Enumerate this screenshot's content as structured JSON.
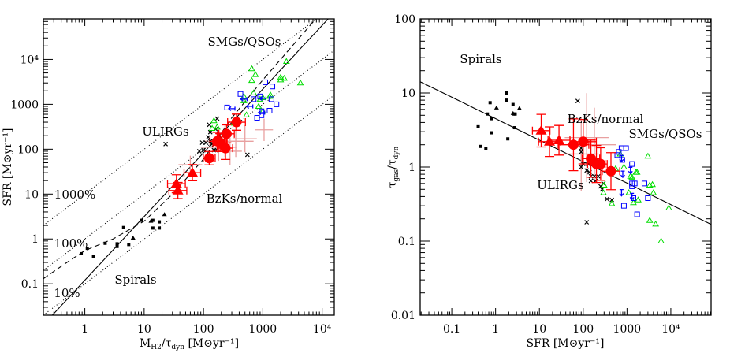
{
  "chart_data": [
    {
      "type": "scatter",
      "xscale": "log",
      "yscale": "log",
      "xlim": [
        0.2,
        16000
      ],
      "ylim": [
        0.02,
        80000
      ],
      "xlabel": {
        "main": "M",
        "sub": "H2",
        "mid": "/τ",
        "sub2": "dyn",
        "rest": " [M⊙yr⁻¹]"
      },
      "ylabel": "SFR [M⊙yr⁻¹]",
      "xticks": [
        {
          "v": 1,
          "label": "1"
        },
        {
          "v": 10,
          "label": "10"
        },
        {
          "v": 100,
          "label": "100"
        },
        {
          "v": 1000,
          "label": "1000"
        },
        {
          "v": 10000,
          "label": "10⁴"
        }
      ],
      "yticks": [
        {
          "v": 0.1,
          "label": "0.1"
        },
        {
          "v": 1,
          "label": "1"
        },
        {
          "v": 10,
          "label": "10"
        },
        {
          "v": 100,
          "label": "100"
        },
        {
          "v": 1000,
          "label": "1000"
        },
        {
          "v": 10000,
          "label": "10⁴"
        }
      ],
      "annotations": [
        "SMGs/QSOs",
        "ULIRGs",
        "BzKs/normal",
        "Spirals",
        "1000%",
        "100%",
        "10%"
      ],
      "lines": [
        {
          "style": "dotted",
          "kind": "ratio",
          "factor": 10
        },
        {
          "style": "dotted",
          "kind": "ratio",
          "factor": 1
        },
        {
          "style": "dotted",
          "kind": "ratio",
          "factor": 0.1
        },
        {
          "style": "solid",
          "kind": "power",
          "A": 0.12,
          "slope": 1.42
        },
        {
          "style": "dashed",
          "kind": "points",
          "points": [
            [
              0.2,
              0.13
            ],
            [
              0.5,
              0.3
            ],
            [
              1,
              0.55
            ],
            [
              3,
              1.0
            ],
            [
              10,
              2.5
            ],
            [
              30,
              10
            ],
            [
              100,
              60
            ],
            [
              300,
              500
            ],
            [
              1000,
              3500
            ],
            [
              7800,
              80000
            ]
          ]
        }
      ],
      "series": {
        "spirals_squares": {
          "color": "#000000",
          "points": [
            [
              0.87,
              0.47
            ],
            [
              1.1,
              0.62
            ],
            [
              1.4,
              0.4
            ],
            [
              2.2,
              0.8
            ],
            [
              3.5,
              0.78
            ],
            [
              3.5,
              0.68
            ],
            [
              4.5,
              1.8
            ],
            [
              5.5,
              0.75
            ],
            [
              9,
              2.6
            ],
            [
              14,
              2.6
            ],
            [
              14,
              1.75
            ],
            [
              18,
              2.4
            ],
            [
              18,
              1.75
            ]
          ]
        },
        "spirals_triangles": {
          "color": "#000000",
          "points": [
            [
              6.5,
              1.05
            ],
            [
              13,
              2.5
            ],
            [
              22,
              3.5
            ]
          ]
        },
        "ulirgs_crosses": {
          "color": "#000000",
          "points": [
            [
              23,
              130
            ],
            [
              85,
              90
            ],
            [
              95,
              140
            ],
            [
              100,
              95
            ],
            [
              110,
              140
            ],
            [
              120,
              185
            ],
            [
              125,
              350
            ],
            [
              130,
              150
            ],
            [
              130,
              240
            ],
            [
              140,
              130
            ],
            [
              150,
              95
            ],
            [
              160,
              95
            ],
            [
              170,
              480
            ],
            [
              180,
              200
            ],
            [
              200,
              180
            ],
            [
              220,
              210
            ],
            [
              250,
              230
            ],
            [
              160,
              280
            ],
            [
              550,
              75
            ]
          ]
        },
        "red_triangles": {
          "color": "#ff0000",
          "points": [
            [
              35,
              17,
              0.15,
              0.2
            ],
            [
              37,
              12,
              0.15,
              0.18
            ],
            [
              65,
              30,
              0.14,
              0.18
            ]
          ]
        },
        "red_circles": {
          "color": "#ff0000",
          "points": [
            [
              125,
              63,
              0.1,
              0.15
            ],
            [
              170,
              150,
              0.12,
              0.2
            ],
            [
              190,
              140,
              0.12,
              0.2
            ],
            [
              235,
              105,
              0.12,
              0.25
            ],
            [
              245,
              220,
              0.13,
              0.2
            ],
            [
              360,
              400,
              0.15,
              0.18
            ]
          ]
        },
        "faint_errorbars": {
          "color": "#e8a0a0",
          "points": [
            [
              230,
              150,
              0.35,
              0.35
            ],
            [
              350,
              150,
              0.3,
              0.35
            ],
            [
              500,
              170,
              0.2,
              0.3
            ],
            [
              1050,
              270,
              0.15,
              0.25
            ],
            [
              180,
              110,
              0.3,
              0.3
            ],
            [
              280,
              90,
              0.2,
              0.3
            ],
            [
              60,
              45,
              0.2,
              0.2
            ]
          ]
        },
        "smg_qso_green_triangles": {
          "color": "#00dd00",
          "points": [
            [
              150,
              430
            ],
            [
              140,
              290
            ],
            [
              170,
              310
            ],
            [
              330,
              380
            ],
            [
              530,
              580
            ],
            [
              480,
              1500
            ],
            [
              480,
              1200
            ],
            [
              650,
              6200
            ],
            [
              650,
              3400
            ],
            [
              700,
              1800
            ],
            [
              750,
              4600
            ],
            [
              850,
              900
            ],
            [
              900,
              1300
            ],
            [
              1000,
              700
            ],
            [
              1000,
              1400
            ],
            [
              1300,
              1500
            ],
            [
              1350,
              1600
            ],
            [
              2000,
              4000
            ],
            [
              2000,
              3500
            ],
            [
              2300,
              3800
            ],
            [
              2500,
              9000
            ],
            [
              4300,
              3000
            ]
          ]
        },
        "smg_qso_blue_squares": {
          "color": "#0000ff",
          "points": [
            [
              250,
              850
            ],
            [
              420,
              1700
            ],
            [
              700,
              1300
            ],
            [
              900,
              1500
            ],
            [
              1100,
              3100
            ],
            [
              1450,
              2500
            ],
            [
              950,
              700
            ],
            [
              950,
              570
            ],
            [
              800,
              500
            ],
            [
              1300,
              720
            ],
            [
              1400,
              1300
            ],
            [
              1700,
              1000
            ]
          ]
        },
        "blue_limits_left": {
          "color": "#0000ff",
          "points": [
            [
              480,
              1300
            ],
            [
              300,
              800
            ],
            [
              600,
              900
            ],
            [
              950,
              650
            ],
            [
              1000,
              1350
            ]
          ]
        }
      }
    },
    {
      "type": "scatter",
      "xscale": "log",
      "yscale": "log",
      "xlim": [
        0.019,
        83000
      ],
      "ylim": [
        0.01,
        100
      ],
      "xlabel": "SFR [M⊙yr⁻¹]",
      "ylabel": {
        "main": "τ",
        "sub": "gas",
        "mid": "/τ",
        "sub2": "dyn"
      },
      "xticks": [
        {
          "v": 0.1,
          "label": "0.1"
        },
        {
          "v": 1,
          "label": "1"
        },
        {
          "v": 10,
          "label": "10"
        },
        {
          "v": 100,
          "label": "100"
        },
        {
          "v": 1000,
          "label": "1000"
        },
        {
          "v": 10000,
          "label": "10⁴"
        }
      ],
      "yticks": [
        {
          "v": 0.01,
          "label": "0.01"
        },
        {
          "v": 0.1,
          "label": "0.1"
        },
        {
          "v": 1,
          "label": "1"
        },
        {
          "v": 10,
          "label": "10"
        },
        {
          "v": 100,
          "label": "100"
        }
      ],
      "annotations": [
        "Spirals",
        "BzKs/normal",
        "SMGs/QSOs",
        "ULIRGs"
      ],
      "lines": [
        {
          "style": "solid",
          "kind": "power",
          "A": 4.5,
          "slope": -0.29
        }
      ],
      "series": {
        "spirals_squares": {
          "color": "#000000",
          "points": [
            [
              0.4,
              3.5
            ],
            [
              0.45,
              1.9
            ],
            [
              0.6,
              1.8
            ],
            [
              0.65,
              5.2
            ],
            [
              0.75,
              7.4
            ],
            [
              0.8,
              4.5
            ],
            [
              0.8,
              2.9
            ],
            [
              1.8,
              10
            ],
            [
              1.8,
              8
            ],
            [
              1.9,
              2.4
            ],
            [
              2.5,
              7
            ],
            [
              2.6,
              5.2
            ],
            [
              2.8,
              5.2
            ],
            [
              2.7,
              3.4
            ]
          ]
        },
        "spirals_triangles": {
          "color": "#000000",
          "points": [
            [
              1.05,
              6.3
            ],
            [
              3.5,
              6.2
            ],
            [
              2.5,
              5.3
            ]
          ]
        },
        "ulirgs_crosses": {
          "color": "#000000",
          "points": [
            [
              75,
              7.8
            ],
            [
              120,
              0.18
            ],
            [
              90,
              1.6
            ],
            [
              90,
              1.0
            ],
            [
              100,
              1.1
            ],
            [
              120,
              0.9
            ],
            [
              130,
              1.1
            ],
            [
              140,
              0.85
            ],
            [
              150,
              0.65
            ],
            [
              150,
              0.75
            ],
            [
              160,
              1.2
            ],
            [
              180,
              0.75
            ],
            [
              190,
              0.65
            ],
            [
              200,
              1.05
            ],
            [
              220,
              0.75
            ],
            [
              230,
              1.2
            ],
            [
              250,
              0.55
            ],
            [
              270,
              0.5
            ],
            [
              290,
              0.6
            ],
            [
              350,
              0.37
            ],
            [
              450,
              0.36
            ],
            [
              90,
              1.8
            ]
          ]
        },
        "red_triangles": {
          "color": "#ff0000",
          "points": [
            [
              11,
              3.1,
              0.2,
              0.22
            ],
            [
              17,
              2.2,
              0.25,
              0.2
            ],
            [
              28,
              2.3,
              0.25,
              0.2
            ]
          ]
        },
        "red_circles": {
          "color": "#ff0000",
          "points": [
            [
              60,
              2.0,
              0.35,
              0.35
            ],
            [
              100,
              2.2,
              0.3,
              0.3
            ],
            [
              150,
              1.3,
              0.2,
              0.25
            ],
            [
              200,
              1.1,
              0.2,
              0.25
            ],
            [
              250,
              1.1,
              0.15,
              0.22
            ],
            [
              430,
              0.88,
              0.2,
              0.25
            ]
          ]
        },
        "faint_errorbars": {
          "color": "#e8a0a0",
          "points": [
            [
              120,
              2.5,
              0.5,
              0.6
            ],
            [
              180,
              2.0,
              0.5,
              0.5
            ],
            [
              90,
              1.5,
              0.4,
              0.5
            ]
          ]
        },
        "smg_qso_green_triangles": {
          "color": "#00dd00",
          "points": [
            [
              300,
              0.57
            ],
            [
              290,
              0.45
            ],
            [
              400,
              0.9
            ],
            [
              450,
              0.32
            ],
            [
              550,
              0.95
            ],
            [
              700,
              1.5
            ],
            [
              850,
              1.0
            ],
            [
              1100,
              0.45
            ],
            [
              1200,
              0.75
            ],
            [
              1300,
              0.73
            ],
            [
              1400,
              0.33
            ],
            [
              1600,
              0.85
            ],
            [
              1700,
              0.85
            ],
            [
              1800,
              0.36
            ],
            [
              3000,
              1.4
            ],
            [
              3300,
              0.57
            ],
            [
              3300,
              0.19
            ],
            [
              3800,
              0.58
            ],
            [
              4000,
              0.45
            ],
            [
              4500,
              0.17
            ],
            [
              6000,
              0.1
            ],
            [
              9000,
              0.28
            ]
          ]
        },
        "smg_qso_blue_squares": {
          "color": "#0000ff",
          "points": [
            [
              600,
              1.45
            ],
            [
              650,
              1.6
            ],
            [
              750,
              1.8
            ],
            [
              780,
              1.25
            ],
            [
              950,
              1.8
            ],
            [
              850,
              0.3
            ],
            [
              1300,
              1.1
            ],
            [
              1300,
              0.6
            ],
            [
              1300,
              0.55
            ],
            [
              1400,
              0.38
            ],
            [
              1500,
              0.6
            ],
            [
              1700,
              0.23
            ],
            [
              2500,
              0.6
            ],
            [
              3000,
              0.38
            ]
          ]
        },
        "blue_limits_down": {
          "color": "#0000ff",
          "points": [
            [
              750,
              1.3
            ],
            [
              800,
              0.8
            ],
            [
              750,
              0.45
            ],
            [
              1200,
              0.9
            ],
            [
              1300,
              0.4
            ]
          ]
        }
      }
    }
  ]
}
